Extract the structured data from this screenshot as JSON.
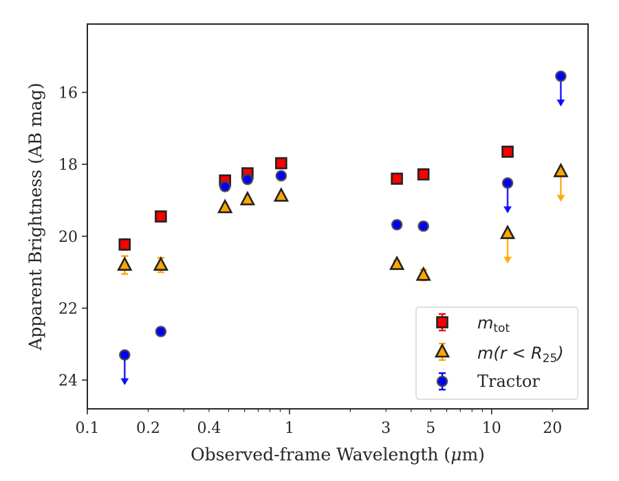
{
  "chart_data": {
    "type": "scatter",
    "title": "",
    "xlabel": "Observed-frame Wavelength (",
    "xlabel_unit_mu": "μ",
    "xlabel_unit_rest": "m)",
    "ylabel": "Apparent Brightness (AB mag)",
    "x_scale": "log",
    "xlim": [
      0.1,
      30
    ],
    "ylim": [
      24.8,
      14.1
    ],
    "y_inverted": true,
    "x_ticks": [
      {
        "value": 0.1,
        "label": "0.1"
      },
      {
        "value": 0.2,
        "label": "0.2"
      },
      {
        "value": 0.4,
        "label": "0.4"
      },
      {
        "value": 1,
        "label": "1"
      },
      {
        "value": 3,
        "label": "3"
      },
      {
        "value": 5,
        "label": "5"
      },
      {
        "value": 10,
        "label": "10"
      },
      {
        "value": 20,
        "label": "20"
      }
    ],
    "y_ticks": [
      {
        "value": 16,
        "label": "16"
      },
      {
        "value": 18,
        "label": "18"
      },
      {
        "value": 20,
        "label": "20"
      },
      {
        "value": 22,
        "label": "22"
      },
      {
        "value": 24,
        "label": "24"
      }
    ],
    "grid": false,
    "legend_position": "lower-right",
    "series": [
      {
        "name": "m_tot",
        "legend_text": "m",
        "legend_sub": "tot",
        "marker": "square",
        "face_color": "#ff0000",
        "error_color": "#ff0000",
        "points": [
          {
            "x": 0.153,
            "y": 20.23,
            "err": 0.15
          },
          {
            "x": 0.231,
            "y": 19.45,
            "err": 0.05
          },
          {
            "x": 0.48,
            "y": 18.45,
            "err": 0.05
          },
          {
            "x": 0.62,
            "y": 18.25,
            "err": 0.05
          },
          {
            "x": 0.91,
            "y": 17.97,
            "err": 0.05
          },
          {
            "x": 3.4,
            "y": 18.4,
            "err": 0.05
          },
          {
            "x": 4.6,
            "y": 18.28,
            "err": 0.05
          },
          {
            "x": 12,
            "y": 17.65,
            "err": 0.05
          }
        ]
      },
      {
        "name": "m(r < R25)",
        "legend_text": "m(r < R",
        "legend_sub": "25",
        "legend_tail": ")",
        "marker": "triangle",
        "face_color": "#ffa500",
        "error_color": "#ffa500",
        "points": [
          {
            "x": 0.153,
            "y": 20.8,
            "err": 0.25
          },
          {
            "x": 0.231,
            "y": 20.8,
            "err": 0.2
          },
          {
            "x": 0.48,
            "y": 19.2,
            "err": 0.05
          },
          {
            "x": 0.62,
            "y": 18.98,
            "err": 0.05
          },
          {
            "x": 0.91,
            "y": 18.88,
            "err": 0.05
          },
          {
            "x": 3.4,
            "y": 20.78,
            "err": 0.1
          },
          {
            "x": 4.6,
            "y": 21.08,
            "err": 0.15
          },
          {
            "x": 12,
            "y": 19.92,
            "upper_limit": true
          },
          {
            "x": 22,
            "y": 18.2,
            "upper_limit": true
          }
        ]
      },
      {
        "name": "Tractor",
        "legend_text": "Tractor",
        "marker": "circle",
        "face_color": "#0000ff",
        "error_color": "#0000ff",
        "points": [
          {
            "x": 0.153,
            "y": 23.3,
            "upper_limit": true
          },
          {
            "x": 0.231,
            "y": 22.65,
            "err": 0.1
          },
          {
            "x": 0.48,
            "y": 18.62,
            "err": 0.1
          },
          {
            "x": 0.62,
            "y": 18.42,
            "err": 0.1
          },
          {
            "x": 0.91,
            "y": 18.32,
            "err": 0.05
          },
          {
            "x": 3.4,
            "y": 19.68,
            "err": 0.1
          },
          {
            "x": 4.6,
            "y": 19.72,
            "err": 0.1
          },
          {
            "x": 12,
            "y": 18.52,
            "upper_limit": true
          },
          {
            "x": 22,
            "y": 15.55,
            "upper_limit": true
          }
        ]
      }
    ]
  }
}
